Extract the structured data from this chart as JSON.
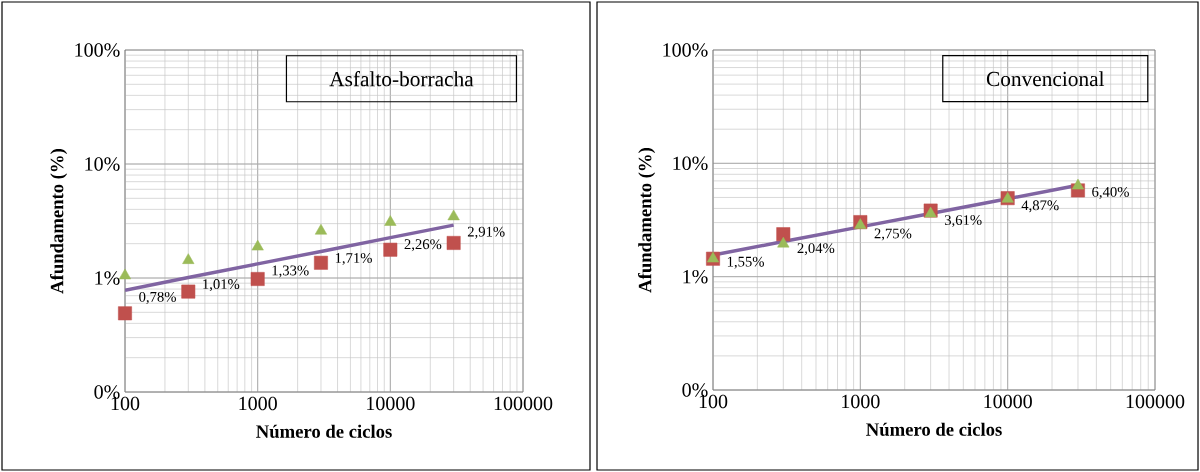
{
  "chart_data": [
    {
      "type": "scatter",
      "title": "Asfalto-borracha",
      "xlabel": "Número de ciclos",
      "ylabel": "Afundamento (%)",
      "log": "xy",
      "grid": true,
      "x": [
        100,
        300,
        1000,
        3000,
        10000,
        30000
      ],
      "xlim": [
        100,
        100000
      ],
      "xticks": [
        100,
        1000,
        10000,
        100000
      ],
      "ylim": [
        0.1,
        100
      ],
      "yticks": [
        {
          "value": 0.1,
          "label": "0%"
        },
        {
          "value": 1,
          "label": "1%"
        },
        {
          "value": 10,
          "label": "10%"
        },
        {
          "value": 100,
          "label": "100%"
        }
      ],
      "series": [
        {
          "marker": "square",
          "color": "#c0504d",
          "values": [
            0.49,
            0.76,
            0.98,
            1.36,
            1.77,
            2.03
          ]
        },
        {
          "marker": "triangle",
          "color": "#9bbb59",
          "values": [
            1.05,
            1.43,
            1.88,
            2.59,
            3.09,
            3.46
          ]
        },
        {
          "type": "line",
          "marker": "none",
          "color": "#8064a2",
          "values": [
            0.78,
            1.01,
            1.33,
            1.71,
            2.26,
            2.91
          ],
          "value_labels": [
            "0,78%",
            "1,01%",
            "1,33%",
            "1,71%",
            "2,26%",
            "2,91%"
          ]
        }
      ]
    },
    {
      "type": "scatter",
      "title": "Convencional",
      "xlabel": "Número de ciclos",
      "ylabel": "Afundamento (%)",
      "log": "xy",
      "grid": true,
      "x": [
        100,
        300,
        1000,
        3000,
        10000,
        30000
      ],
      "xlim": [
        100,
        100000
      ],
      "xticks": [
        100,
        1000,
        10000,
        100000
      ],
      "ylim": [
        0.1,
        100
      ],
      "yticks": [
        {
          "value": 0.1,
          "label": "0%"
        },
        {
          "value": 1,
          "label": "1%"
        },
        {
          "value": 10,
          "label": "10%"
        },
        {
          "value": 100,
          "label": "100%"
        }
      ],
      "series": [
        {
          "marker": "square",
          "color": "#c0504d",
          "values": [
            1.44,
            2.37,
            3.03,
            3.83,
            4.93,
            5.77
          ]
        },
        {
          "marker": "triangle",
          "color": "#9bbb59",
          "values": [
            1.44,
            1.95,
            2.84,
            3.6,
            4.85,
            6.34
          ]
        },
        {
          "type": "line",
          "marker": "none",
          "color": "#8064a2",
          "values": [
            1.55,
            2.04,
            2.75,
            3.61,
            4.87,
            6.4
          ],
          "value_labels": [
            "1,55%",
            "2,04%",
            "2,75%",
            "3,61%",
            "4,87%",
            "6,40%"
          ]
        }
      ]
    }
  ]
}
